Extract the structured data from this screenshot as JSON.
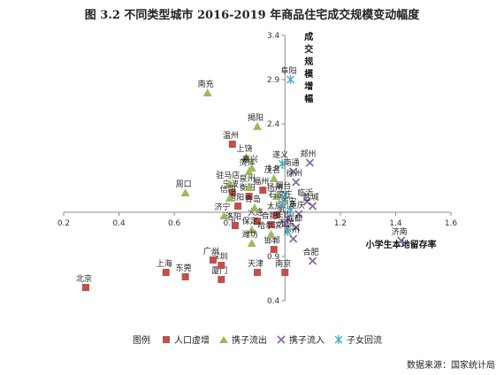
{
  "title": "图 3.2   不同类型城市 2016-2019 年商品住宅成交规模变动幅度",
  "source": "数据来源：国家统计局",
  "legend_label": "图例",
  "chart_data": {
    "type": "scatter",
    "xlabel": "小学生本地留存率",
    "ylabel": "成交规模增幅",
    "xlim": [
      0.2,
      1.6
    ],
    "ylim": [
      0.4,
      3.4
    ],
    "x_ticks": [
      "0.2",
      "0.4",
      "0.6",
      "0.8",
      "1.2",
      "1.4",
      "1.6"
    ],
    "x_tick_values": [
      0.2,
      0.4,
      0.6,
      0.8,
      1.2,
      1.4,
      1.6
    ],
    "y_ticks": [
      "3.4",
      "2.9",
      "2.4",
      "1.9",
      "0.9",
      "0.4"
    ],
    "y_tick_values": [
      3.4,
      2.9,
      2.4,
      1.9,
      0.9,
      0.4
    ],
    "axis_cross": [
      1.0,
      1.4
    ],
    "series": [
      {
        "name": "人口虚增",
        "marker": "square",
        "color": "#c0504d",
        "points": [
          {
            "label": "北京",
            "x": 0.28,
            "y": 0.55
          },
          {
            "label": "上海",
            "x": 0.57,
            "y": 0.72
          },
          {
            "label": "东莞",
            "x": 0.64,
            "y": 0.67
          },
          {
            "label": "厦门",
            "x": 0.77,
            "y": 0.64
          },
          {
            "label": "深圳",
            "x": 0.77,
            "y": 0.8
          },
          {
            "label": "广州",
            "x": 0.74,
            "y": 0.86
          },
          {
            "label": "天津",
            "x": 0.9,
            "y": 0.72
          },
          {
            "label": "南京",
            "x": 1.0,
            "y": 0.72
          },
          {
            "label": "温州",
            "x": 0.81,
            "y": 2.17
          },
          {
            "label": "宁波",
            "x": 0.81,
            "y": 1.62
          },
          {
            "label": "南阳",
            "x": 0.83,
            "y": 1.47
          },
          {
            "label": "洛阳",
            "x": 0.82,
            "y": 1.25
          },
          {
            "label": "衡阳",
            "x": 0.87,
            "y": 1.58
          },
          {
            "label": "福州",
            "x": 0.92,
            "y": 1.65
          },
          {
            "label": "太原",
            "x": 0.97,
            "y": 1.37
          },
          {
            "label": "合肥",
            "x": 0.95,
            "y": 1.26
          },
          {
            "label": "邯郸",
            "x": 0.96,
            "y": 0.98
          },
          {
            "label": "大连",
            "x": 0.9,
            "y": 1.3
          }
        ]
      },
      {
        "name": "携子流出",
        "marker": "triangle",
        "color": "#9bbb59",
        "points": [
          {
            "label": "南充",
            "x": 0.72,
            "y": 2.75
          },
          {
            "label": "揭阳",
            "x": 0.9,
            "y": 2.37
          },
          {
            "label": "周口",
            "x": 0.64,
            "y": 1.62
          },
          {
            "label": "驻马店",
            "x": 0.8,
            "y": 1.72
          },
          {
            "label": "信阳",
            "x": 0.8,
            "y": 1.56
          },
          {
            "label": "济宁",
            "x": 0.78,
            "y": 1.36
          },
          {
            "label": "上饶",
            "x": 0.86,
            "y": 2.02
          },
          {
            "label": "菏泽",
            "x": 0.87,
            "y": 1.86
          },
          {
            "label": "嘉兴",
            "x": 0.88,
            "y": 1.9
          },
          {
            "label": "泉州",
            "x": 0.87,
            "y": 1.68
          },
          {
            "label": "青岛",
            "x": 0.89,
            "y": 1.45
          },
          {
            "label": "茂名",
            "x": 0.96,
            "y": 1.78
          },
          {
            "label": "扬州",
            "x": 0.97,
            "y": 1.58
          },
          {
            "label": "保定",
            "x": 0.88,
            "y": 1.2
          },
          {
            "label": "哈尔滨",
            "x": 0.95,
            "y": 1.15
          },
          {
            "label": "潍坊",
            "x": 0.88,
            "y": 1.05
          }
        ]
      },
      {
        "name": "携子流入",
        "marker": "x",
        "color": "#8064a2",
        "points": [
          {
            "label": "郑州",
            "x": 1.09,
            "y": 1.96
          },
          {
            "label": "南通",
            "x": 1.03,
            "y": 1.86
          },
          {
            "label": "徐州",
            "x": 1.04,
            "y": 1.74
          },
          {
            "label": "临沂",
            "x": 1.08,
            "y": 1.52
          },
          {
            "label": "盐城",
            "x": 1.1,
            "y": 1.47
          },
          {
            "label": "重庆",
            "x": 1.05,
            "y": 1.38
          },
          {
            "label": "成都",
            "x": 1.04,
            "y": 1.23
          },
          {
            "label": "长沙",
            "x": 1.0,
            "y": 1.27
          },
          {
            "label": "苏州",
            "x": 1.03,
            "y": 1.1
          },
          {
            "label": "合肥",
            "x": 1.1,
            "y": 0.85
          },
          {
            "label": "济南",
            "x": 1.42,
            "y": 1.08
          },
          {
            "label": "武汉",
            "x": 1.01,
            "y": 1.33
          }
        ]
      },
      {
        "name": "子女回流",
        "marker": "asterisk",
        "color": "#4bacc6",
        "points": [
          {
            "label": "阜阳",
            "x": 1.02,
            "y": 2.9
          },
          {
            "label": "遂义",
            "x": 0.99,
            "y": 1.95
          },
          {
            "label": "烟台",
            "x": 1.0,
            "y": 1.6
          },
          {
            "label": "西安",
            "x": 1.02,
            "y": 1.42
          },
          {
            "label": "石家庄",
            "x": 0.99,
            "y": 1.5
          },
          {
            "label": "无锡",
            "x": 1.01,
            "y": 1.18
          }
        ]
      }
    ],
    "label_positions": "near-points"
  }
}
